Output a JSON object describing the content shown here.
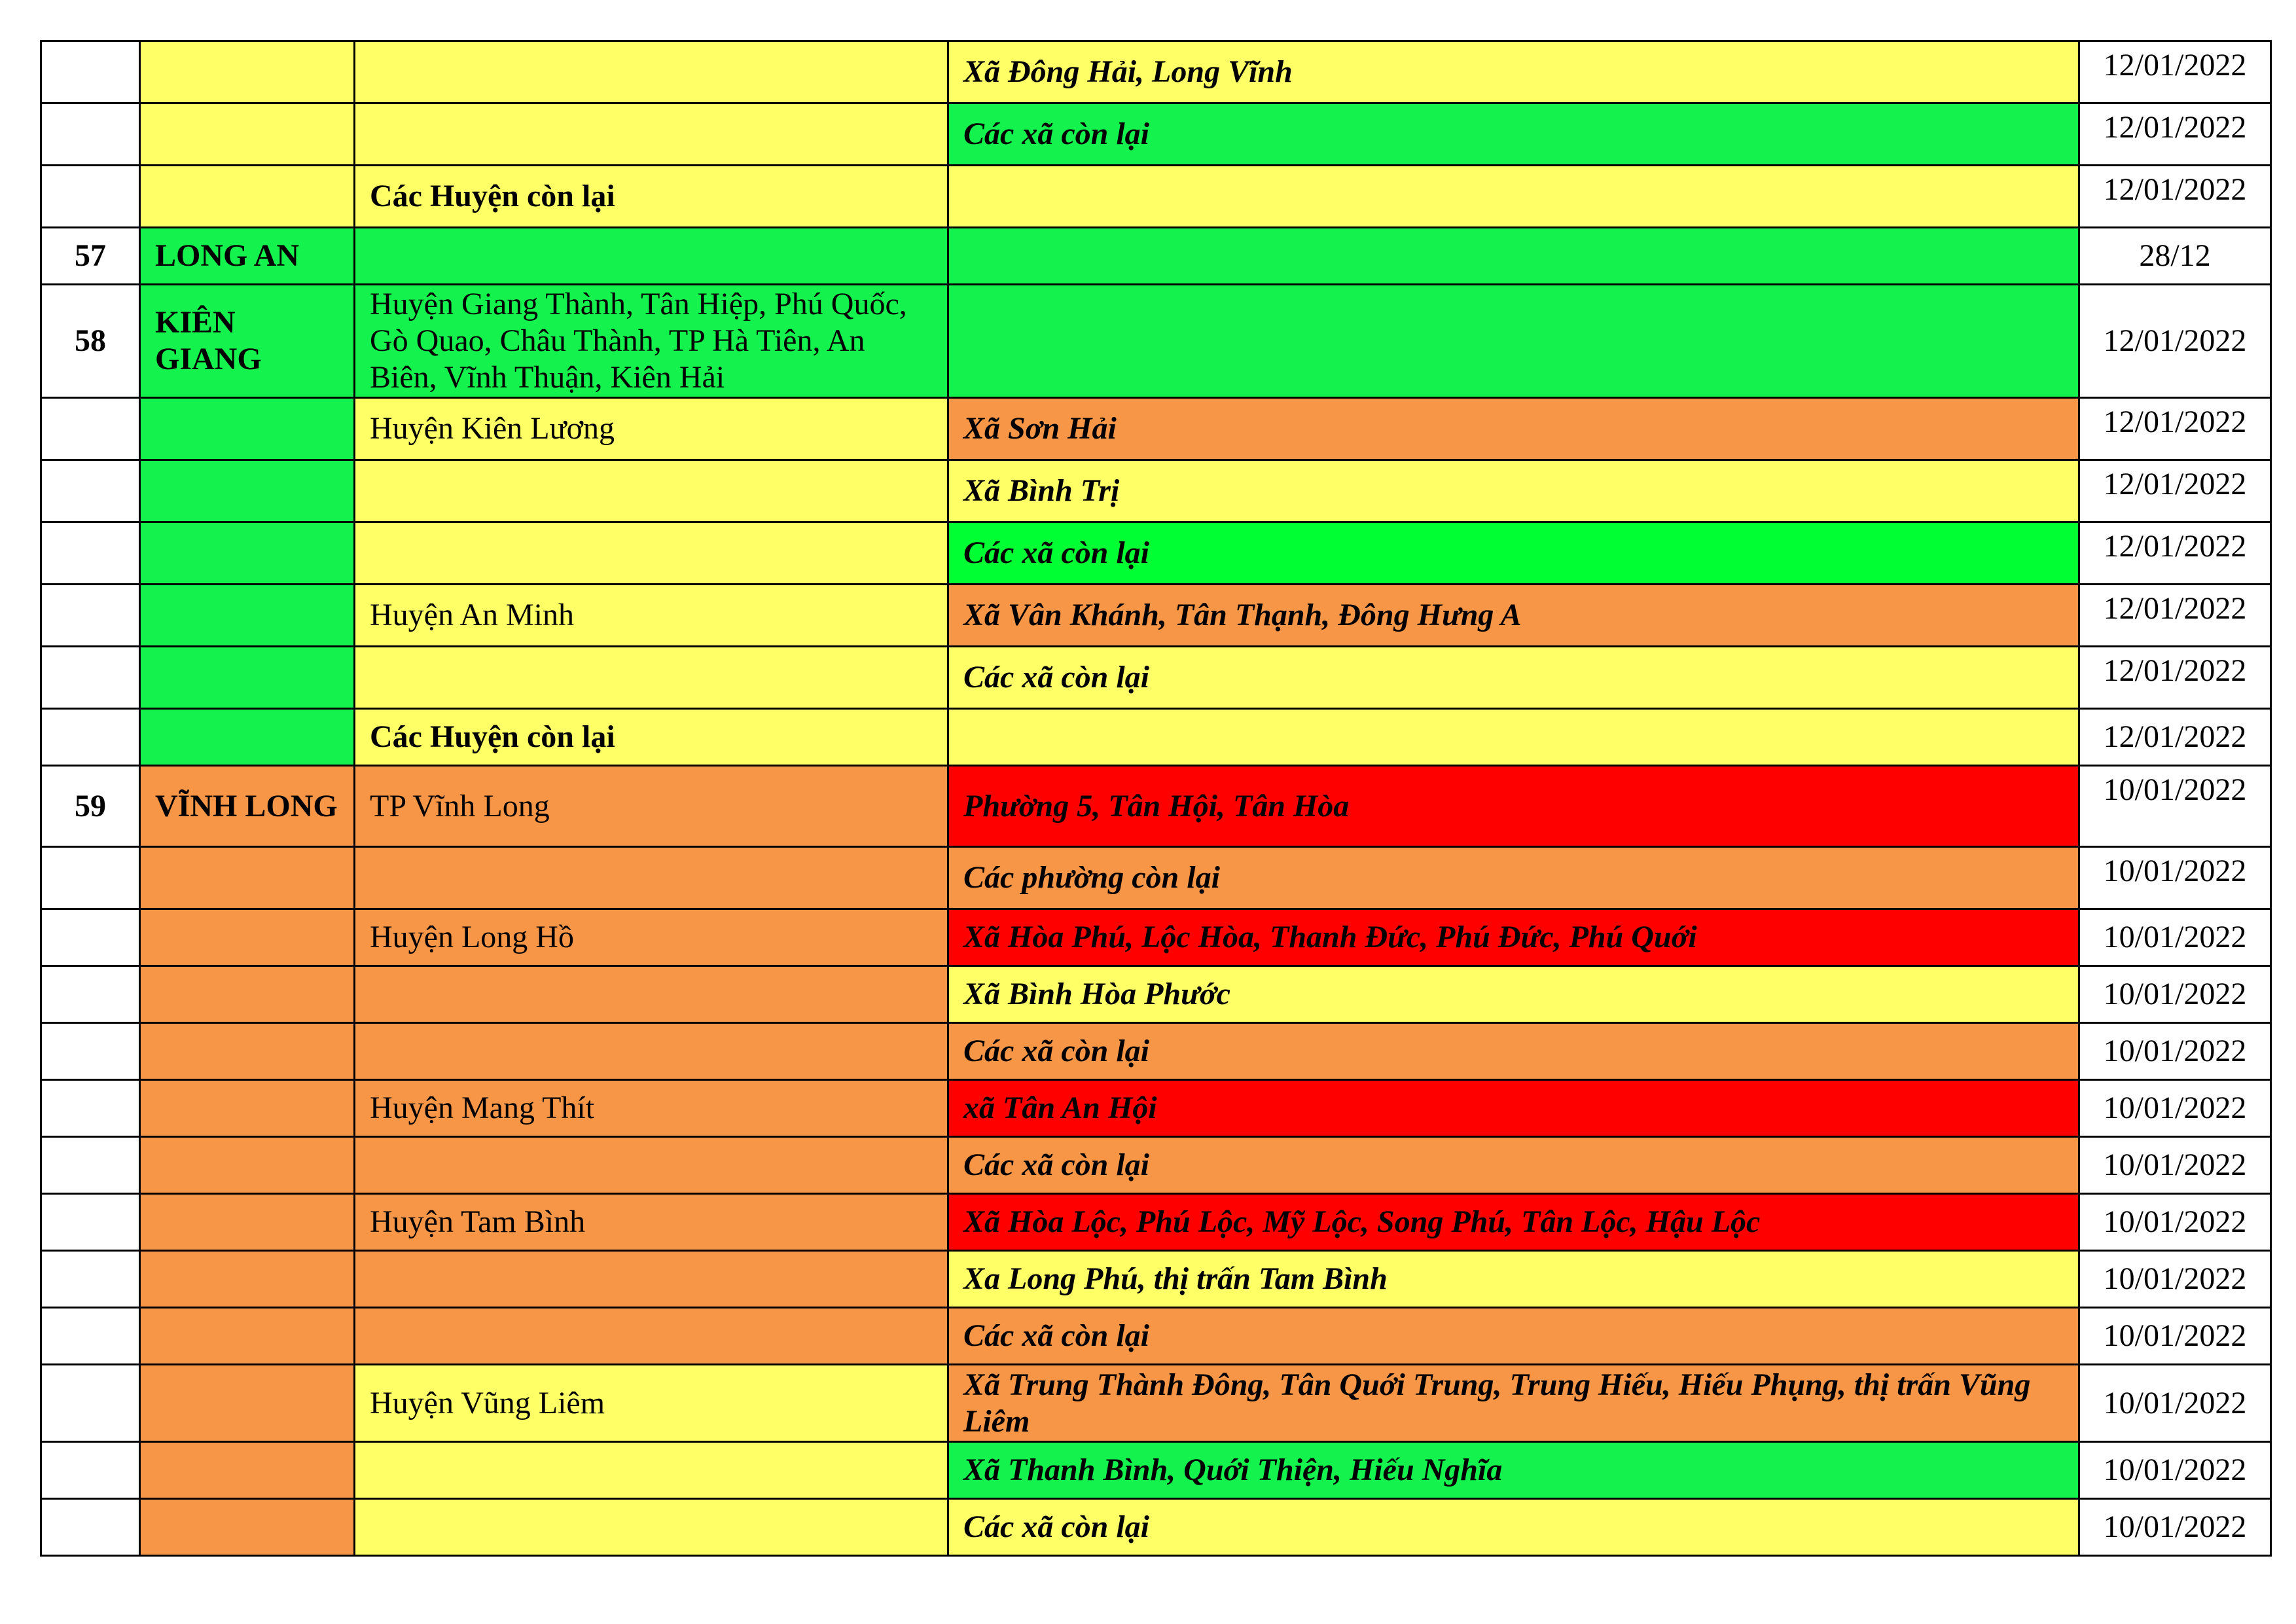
{
  "colors": {
    "white": "#FFFFFF",
    "yellow": "#FFFF66",
    "green": "#14F24E",
    "bright_green": "#00FF33",
    "orange": "#F79646",
    "red": "#FF0000"
  },
  "rows": [
    {
      "stt": "",
      "province": "",
      "district": "",
      "commune": "Xã Đông Hải, Long Vĩnh",
      "date": "12/01/2022",
      "fill": [
        "white",
        "yellow",
        "yellow",
        "yellow",
        "white"
      ]
    },
    {
      "stt": "",
      "province": "",
      "district": "",
      "commune": "Các xã còn lại",
      "date": "12/01/2022",
      "fill": [
        "white",
        "yellow",
        "yellow",
        "green",
        "white"
      ]
    },
    {
      "stt": "",
      "province": "",
      "district": "Các Huyện còn lại",
      "district_bold": true,
      "commune": "",
      "date": "12/01/2022",
      "fill": [
        "white",
        "yellow",
        "yellow",
        "yellow",
        "white"
      ]
    },
    {
      "stt": "57",
      "province": "LONG AN",
      "district": "",
      "commune": "",
      "date": "28/12",
      "date_mid": true,
      "fill": [
        "white",
        "green",
        "green",
        "green",
        "white"
      ]
    },
    {
      "stt": "58",
      "province": "KIÊN GIANG",
      "district": "Huyện Giang Thành, Tân Hiệp, Phú Quốc, Gò Quao, Châu Thành, TP Hà Tiên, An Biên, Vĩnh Thuận, Kiên Hải",
      "commune": "",
      "date": "12/01/2022",
      "date_mid": true,
      "fill": [
        "white",
        "green",
        "green",
        "green",
        "white"
      ],
      "tall": 176
    },
    {
      "stt": "",
      "province": "",
      "district": "Huyện Kiên Lương",
      "commune": "Xã Sơn Hải",
      "date": "12/01/2022",
      "fill": [
        "white",
        "green",
        "yellow",
        "orange",
        "white"
      ]
    },
    {
      "stt": "",
      "province": "",
      "district": "",
      "commune": "Xã Bình Trị",
      "date": "12/01/2022",
      "fill": [
        "white",
        "green",
        "yellow",
        "yellow",
        "white"
      ]
    },
    {
      "stt": "",
      "province": "",
      "district": "",
      "commune": "Các xã còn lại",
      "date": "12/01/2022",
      "fill": [
        "white",
        "green",
        "yellow",
        "bright_green",
        "white"
      ]
    },
    {
      "stt": "",
      "province": "",
      "district": "Huyện An Minh",
      "commune": "Xã Vân Khánh, Tân Thạnh, Đông Hưng A",
      "date": "12/01/2022",
      "fill": [
        "white",
        "green",
        "yellow",
        "orange",
        "white"
      ]
    },
    {
      "stt": "",
      "province": "",
      "district": "",
      "commune": "Các xã còn lại",
      "date": "12/01/2022",
      "fill": [
        "white",
        "green",
        "yellow",
        "yellow",
        "white"
      ]
    },
    {
      "stt": "",
      "province": "",
      "district": "Các Huyện còn lại",
      "district_bold": true,
      "commune": "",
      "date": "12/01/2022",
      "date_mid": true,
      "fill": [
        "white",
        "green",
        "yellow",
        "yellow",
        "white"
      ]
    },
    {
      "stt": "59",
      "province": "VĨNH LONG",
      "district": "TP Vĩnh Long",
      "commune": "Phường 5, Tân Hội, Tân Hòa",
      "date": "10/01/2022",
      "fill": [
        "white",
        "orange",
        "orange",
        "red",
        "white"
      ],
      "tall": 119
    },
    {
      "stt": "",
      "province": "",
      "district": "",
      "commune": "Các phường còn lại",
      "date": "10/01/2022",
      "fill": [
        "white",
        "orange",
        "orange",
        "orange",
        "white"
      ]
    },
    {
      "stt": "",
      "province": "",
      "district": "Huyện Long Hồ",
      "commune": "Xã Hòa Phú, Lộc Hòa, Thanh Đức, Phú Đức, Phú Quới",
      "date": "10/01/2022",
      "date_mid": true,
      "fill": [
        "white",
        "orange",
        "orange",
        "red",
        "white"
      ]
    },
    {
      "stt": "",
      "province": "",
      "district": "",
      "commune": "Xã Bình Hòa Phước",
      "date": "10/01/2022",
      "date_mid": true,
      "fill": [
        "white",
        "orange",
        "orange",
        "yellow",
        "white"
      ]
    },
    {
      "stt": "",
      "province": "",
      "district": "",
      "commune": "Các xã còn lại",
      "date": "10/01/2022",
      "date_mid": true,
      "fill": [
        "white",
        "orange",
        "orange",
        "orange",
        "white"
      ]
    },
    {
      "stt": "",
      "province": "",
      "district": "Huyện Mang Thít",
      "commune": "xã Tân An Hội",
      "date": "10/01/2022",
      "date_mid": true,
      "fill": [
        "white",
        "orange",
        "orange",
        "red",
        "white"
      ]
    },
    {
      "stt": "",
      "province": "",
      "district": "",
      "commune": "Các xã còn lại",
      "date": "10/01/2022",
      "date_mid": true,
      "fill": [
        "white",
        "orange",
        "orange",
        "orange",
        "white"
      ]
    },
    {
      "stt": "",
      "province": "",
      "district": "Huyện Tam Bình",
      "commune": "Xã Hòa Lộc, Phú Lộc, Mỹ Lộc, Song Phú, Tân Lộc, Hậu Lộc",
      "date": "10/01/2022",
      "date_mid": true,
      "fill": [
        "white",
        "orange",
        "orange",
        "red",
        "white"
      ]
    },
    {
      "stt": "",
      "province": "",
      "district": "",
      "commune": "Xa Long Phú, thị trấn Tam Bình",
      "date": "10/01/2022",
      "date_mid": true,
      "fill": [
        "white",
        "orange",
        "orange",
        "yellow",
        "white"
      ]
    },
    {
      "stt": "",
      "province": "",
      "district": "",
      "commune": "Các xã còn lại",
      "date": "10/01/2022",
      "date_mid": true,
      "fill": [
        "white",
        "orange",
        "orange",
        "orange",
        "white"
      ]
    },
    {
      "stt": "",
      "province": "",
      "district": "Huyện Vũng Liêm",
      "commune": "Xã Trung Thành Đông, Tân Quới Trung, Trung Hiếu, Hiếu Phụng, thị trấn Vũng Liêm",
      "date": "10/01/2022",
      "date_mid": true,
      "fill": [
        "white",
        "orange",
        "yellow",
        "orange",
        "white"
      ],
      "tall": 121
    },
    {
      "stt": "",
      "province": "",
      "district": "",
      "commune": "Xã Thanh Bình, Quới Thiện, Hiếu Nghĩa",
      "date": "10/01/2022",
      "date_mid": true,
      "fill": [
        "white",
        "orange",
        "yellow",
        "green",
        "white"
      ]
    },
    {
      "stt": "",
      "province": "",
      "district": "",
      "commune": "Các xã còn lại",
      "date": "10/01/2022",
      "date_mid": true,
      "fill": [
        "white",
        "orange",
        "yellow",
        "yellow",
        "white"
      ]
    }
  ]
}
